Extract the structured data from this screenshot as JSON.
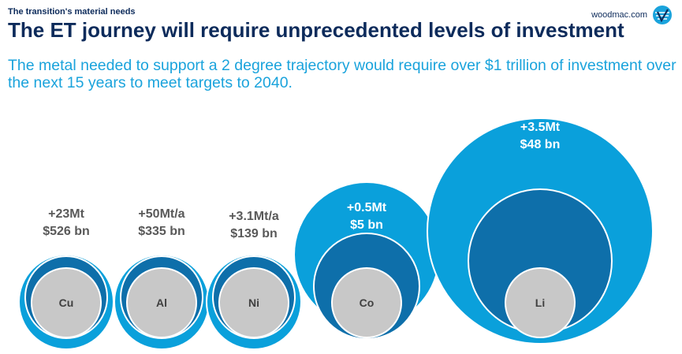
{
  "header": {
    "section_label": "The transition's material needs",
    "brand": "woodmac.com",
    "title": "The ET journey will require unprecedented levels of investment",
    "subtitle": "The metal needed to support a 2 degree trajectory would require over $1 trillion of investment over the next 15 years to meet targets to 2040."
  },
  "colors": {
    "outer": "#0aa0db",
    "middle": "#0e6faa",
    "inner": "#c8c8c8",
    "ring": "#ffffff",
    "label_dark": "#595959",
    "label_light": "#ffffff",
    "title": "#0d2b5b"
  },
  "chart_data": {
    "type": "nested-bubble",
    "title": "The ET journey will require unprecedented levels of investment",
    "metals": [
      {
        "symbol": "Cu",
        "volume": "+23Mt",
        "investment": "$526 bn",
        "investment_bn": 526
      },
      {
        "symbol": "Al",
        "volume": "+50Mt/a",
        "investment": "$335 bn",
        "investment_bn": 335
      },
      {
        "symbol": "Ni",
        "volume": "+3.1Mt/a",
        "investment": "$139 bn",
        "investment_bn": 139
      },
      {
        "symbol": "Co",
        "volume": "+0.5Mt",
        "investment": "$5 bn",
        "investment_bn": 5
      },
      {
        "symbol": "Li",
        "volume": "+3.5Mt",
        "investment": "$48 bn",
        "investment_bn": 48
      }
    ]
  }
}
